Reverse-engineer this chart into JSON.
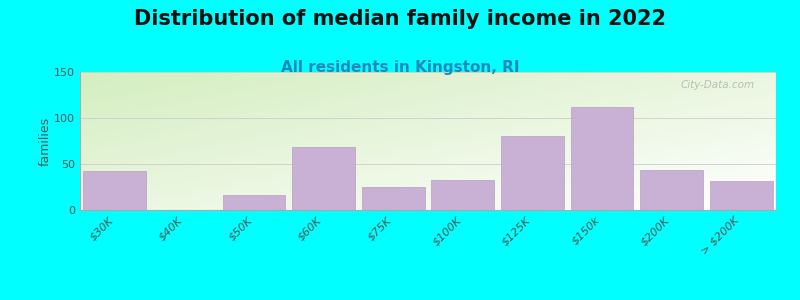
{
  "title": "Distribution of median family income in 2022",
  "subtitle": "All residents in Kingston, RI",
  "ylabel": "families",
  "background_color": "#00FFFF",
  "bar_color": "#c9b0d5",
  "bar_edge_color": "#b89ec4",
  "categories": [
    "$30K",
    "$40K",
    "$50K",
    "$60K",
    "$75K",
    "$100K",
    "$125K",
    "$150k",
    "$200K",
    "> $200K"
  ],
  "values": [
    42,
    0,
    16,
    68,
    25,
    33,
    80,
    112,
    43,
    31
  ],
  "ylim": [
    0,
    150
  ],
  "yticks": [
    0,
    50,
    100,
    150
  ],
  "title_fontsize": 15,
  "subtitle_fontsize": 11,
  "ylabel_fontsize": 9,
  "tick_fontsize": 8,
  "watermark": "City-Data.com",
  "grad_top_color": "#d4eec0",
  "grad_bottom_color": "#f0faf0",
  "grad_right_color": "#ffffff"
}
